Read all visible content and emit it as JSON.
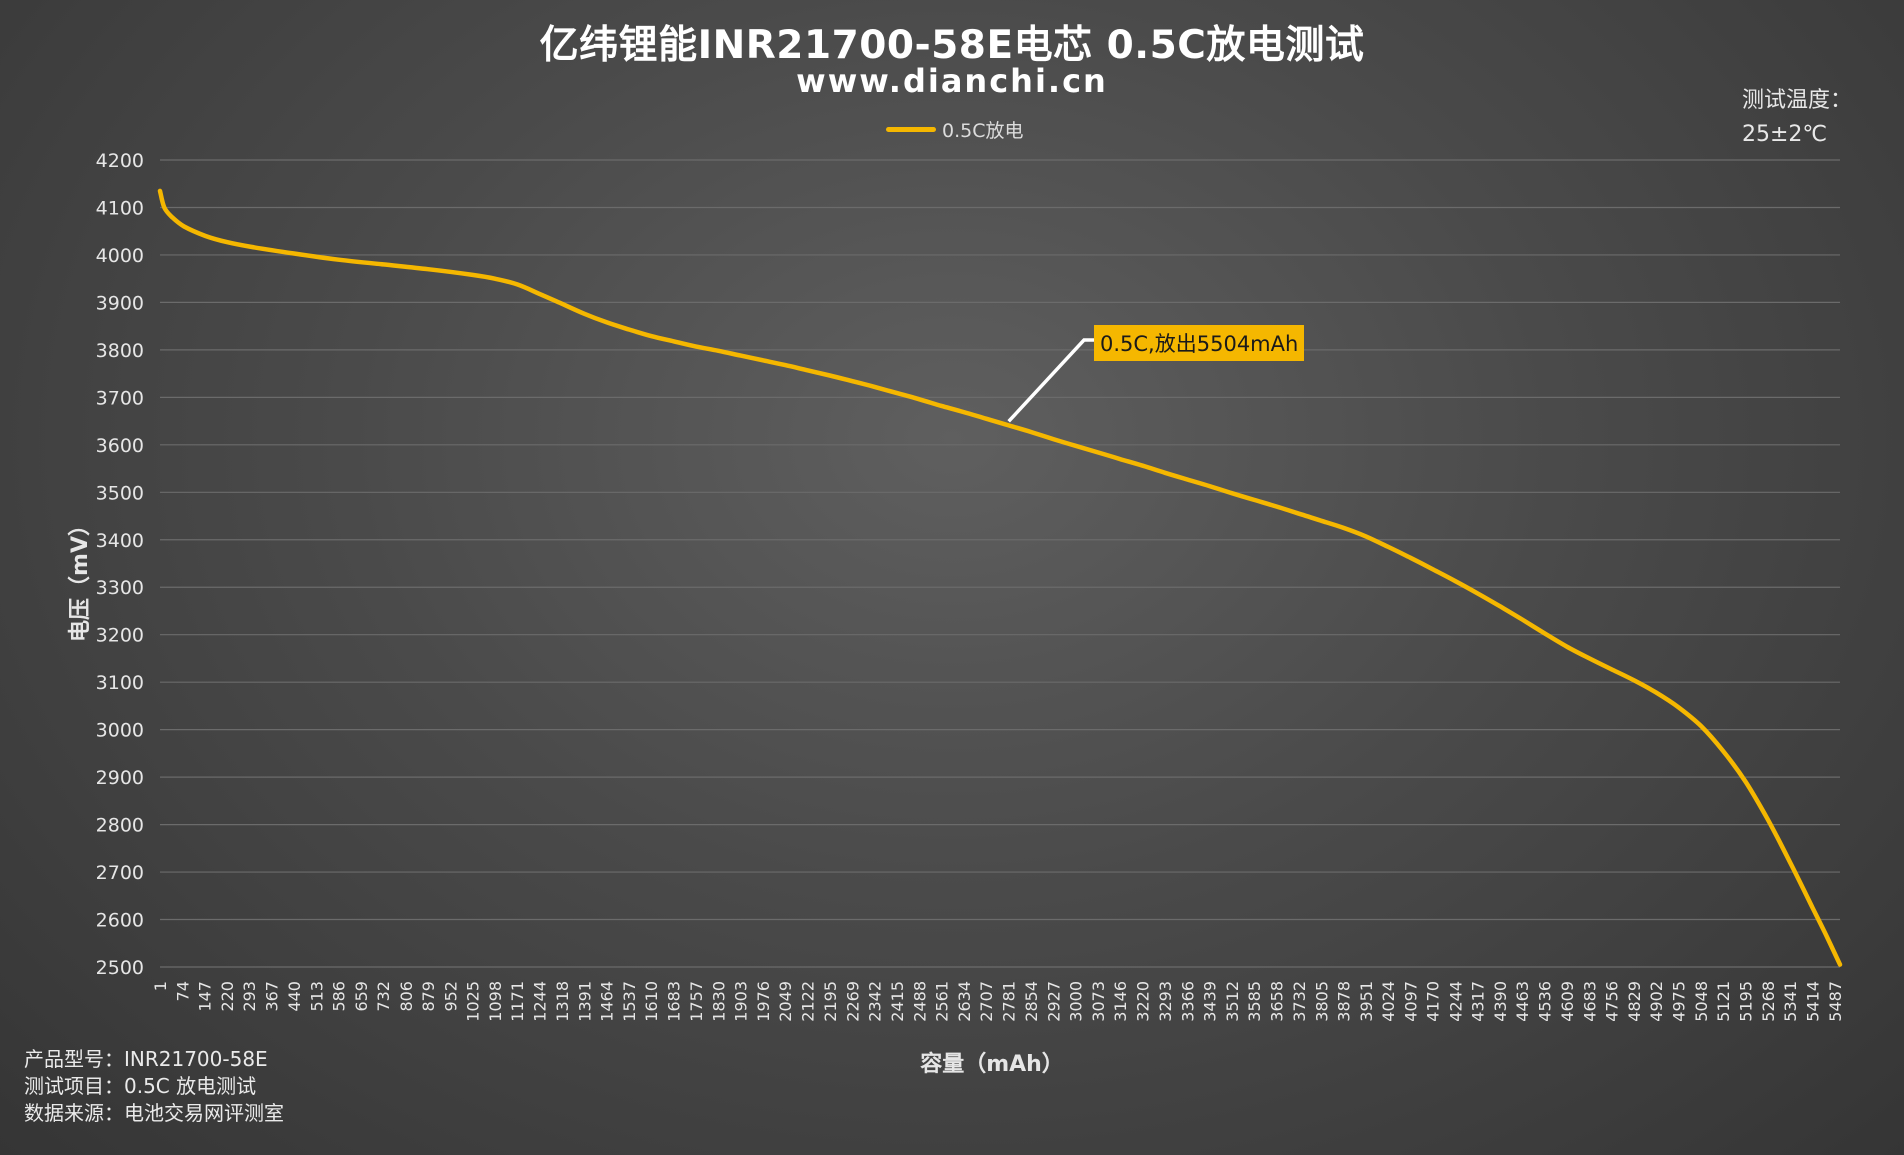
{
  "title": "亿纬锂能INR21700-58E电芯 0.5C放电测试",
  "subtitle": "www.dianchi.cn",
  "temperature": {
    "label": "测试温度：",
    "value": "25±2℃"
  },
  "info": {
    "model_label": "产品型号：",
    "model_value": "INR21700-58E",
    "item_label": "测试项目：",
    "item_value": "0.5C 放电测试",
    "source_label": "数据来源：",
    "source_value": "电池交易网评测室"
  },
  "colors": {
    "series": "#f5b700",
    "annotation_bg": "#f5b700",
    "grid": "#6b6b6b",
    "leader": "#ffffff"
  },
  "chart_data": {
    "type": "line",
    "title": "亿纬锂能INR21700-58E电芯 0.5C放电测试",
    "xlabel": "容量（mAh）",
    "ylabel": "电压（mV）",
    "ylim": [
      2500,
      4200
    ],
    "xlim": [
      1,
      5504
    ],
    "grid": true,
    "legend_position": "top-center",
    "y_ticks": [
      4200,
      4100,
      4000,
      3900,
      3800,
      3700,
      3600,
      3500,
      3400,
      3300,
      3200,
      3100,
      3000,
      2900,
      2800,
      2700,
      2600,
      2500
    ],
    "x_ticks": [
      1,
      74,
      147,
      220,
      293,
      367,
      440,
      513,
      586,
      659,
      732,
      806,
      879,
      952,
      1025,
      1098,
      1171,
      1244,
      1318,
      1391,
      1464,
      1537,
      1610,
      1683,
      1757,
      1830,
      1903,
      1976,
      2049,
      2122,
      2195,
      2269,
      2342,
      2415,
      2488,
      2561,
      2634,
      2707,
      2781,
      2854,
      2927,
      3000,
      3073,
      3146,
      3220,
      3293,
      3366,
      3439,
      3512,
      3585,
      3658,
      3732,
      3805,
      3878,
      3951,
      4024,
      4097,
      4170,
      4244,
      4317,
      4390,
      4463,
      4536,
      4609,
      4683,
      4756,
      4829,
      4902,
      4975,
      5048,
      5121,
      5195,
      5268,
      5341,
      5414,
      5487
    ],
    "series": [
      {
        "name": "0.5C放电",
        "x": [
          1,
          15,
          40,
          80,
          150,
          220,
          300,
          440,
          586,
          732,
          879,
          1025,
          1098,
          1171,
          1244,
          1318,
          1391,
          1464,
          1537,
          1610,
          1683,
          1757,
          1830,
          1903,
          1976,
          2049,
          2122,
          2195,
          2269,
          2342,
          2415,
          2488,
          2561,
          2634,
          2707,
          2781,
          2854,
          2927,
          3000,
          3073,
          3146,
          3220,
          3293,
          3366,
          3439,
          3512,
          3585,
          3658,
          3732,
          3805,
          3878,
          3951,
          4024,
          4097,
          4170,
          4244,
          4317,
          4390,
          4463,
          4536,
          4609,
          4683,
          4756,
          4829,
          4902,
          4975,
          5048,
          5121,
          5195,
          5268,
          5341,
          5414,
          5460,
          5504
        ],
        "y": [
          4135,
          4100,
          4080,
          4060,
          4040,
          4027,
          4017,
          4003,
          3990,
          3980,
          3970,
          3958,
          3950,
          3938,
          3918,
          3897,
          3876,
          3858,
          3843,
          3829,
          3818,
          3807,
          3798,
          3788,
          3778,
          3768,
          3757,
          3746,
          3734,
          3722,
          3709,
          3696,
          3682,
          3669,
          3655,
          3641,
          3627,
          3612,
          3598,
          3584,
          3570,
          3556,
          3541,
          3527,
          3513,
          3498,
          3484,
          3470,
          3455,
          3440,
          3425,
          3407,
          3385,
          3362,
          3338,
          3313,
          3287,
          3260,
          3232,
          3203,
          3175,
          3150,
          3127,
          3104,
          3078,
          3047,
          3008,
          2955,
          2890,
          2810,
          2720,
          2625,
          2565,
          2505
        ]
      }
    ],
    "annotation": {
      "text": "0.5C,放出5504mAh",
      "x": 2781,
      "y": 3641
    }
  }
}
